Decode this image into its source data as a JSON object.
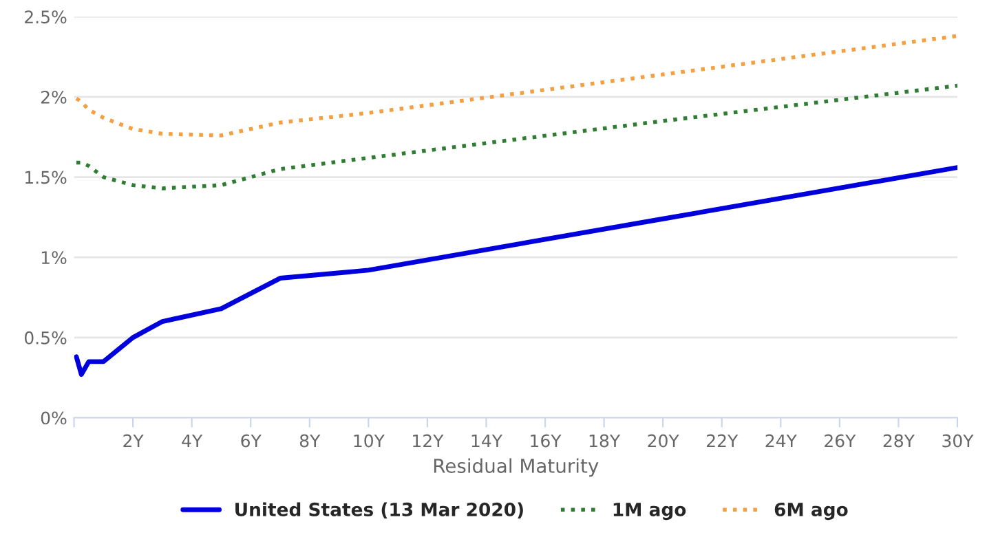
{
  "chart_data": {
    "type": "line",
    "xlabel": "Residual Maturity",
    "x": [
      0.08,
      0.25,
      0.5,
      1,
      2,
      3,
      5,
      7,
      10,
      20,
      30
    ],
    "series": [
      {
        "name": "United States (13 Mar 2020)",
        "color": "#0000dd",
        "line_style": "solid",
        "values": [
          0.38,
          0.27,
          0.35,
          0.35,
          0.5,
          0.6,
          0.68,
          0.87,
          0.92,
          1.24,
          1.56
        ]
      },
      {
        "name": "1M ago",
        "color": "#2e7d32",
        "line_style": "dotted",
        "values": [
          1.59,
          1.59,
          1.57,
          1.5,
          1.45,
          1.43,
          1.45,
          1.55,
          1.62,
          1.85,
          2.07
        ]
      },
      {
        "name": "6M ago",
        "color": "#f4a040",
        "line_style": "dotted",
        "values": [
          1.99,
          1.97,
          1.92,
          1.87,
          1.8,
          1.77,
          1.76,
          1.84,
          1.9,
          2.14,
          2.38
        ]
      }
    ],
    "xlim": [
      0,
      30
    ],
    "xticks": [
      {
        "value": 0,
        "label": null
      },
      {
        "value": 2,
        "label": "2Y"
      },
      {
        "value": 4,
        "label": "4Y"
      },
      {
        "value": 6,
        "label": "6Y"
      },
      {
        "value": 8,
        "label": "8Y"
      },
      {
        "value": 10,
        "label": "10Y"
      },
      {
        "value": 12,
        "label": "12Y"
      },
      {
        "value": 14,
        "label": "14Y"
      },
      {
        "value": 16,
        "label": "16Y"
      },
      {
        "value": 18,
        "label": "18Y"
      },
      {
        "value": 20,
        "label": "20Y"
      },
      {
        "value": 22,
        "label": "22Y"
      },
      {
        "value": 24,
        "label": "24Y"
      },
      {
        "value": 26,
        "label": "26Y"
      },
      {
        "value": 28,
        "label": "28Y"
      },
      {
        "value": 30,
        "label": "30Y"
      }
    ],
    "ylim": [
      0,
      2.5
    ],
    "yticks": [
      {
        "value": 0,
        "label": "0%"
      },
      {
        "value": 0.5,
        "label": "0.5%"
      },
      {
        "value": 1,
        "label": "1%"
      },
      {
        "value": 1.5,
        "label": "1.5%"
      },
      {
        "value": 2,
        "label": "2%"
      },
      {
        "value": 2.5,
        "label": "2.5%"
      }
    ],
    "grid": "y",
    "legend": "bottom",
    "marker": "none"
  }
}
